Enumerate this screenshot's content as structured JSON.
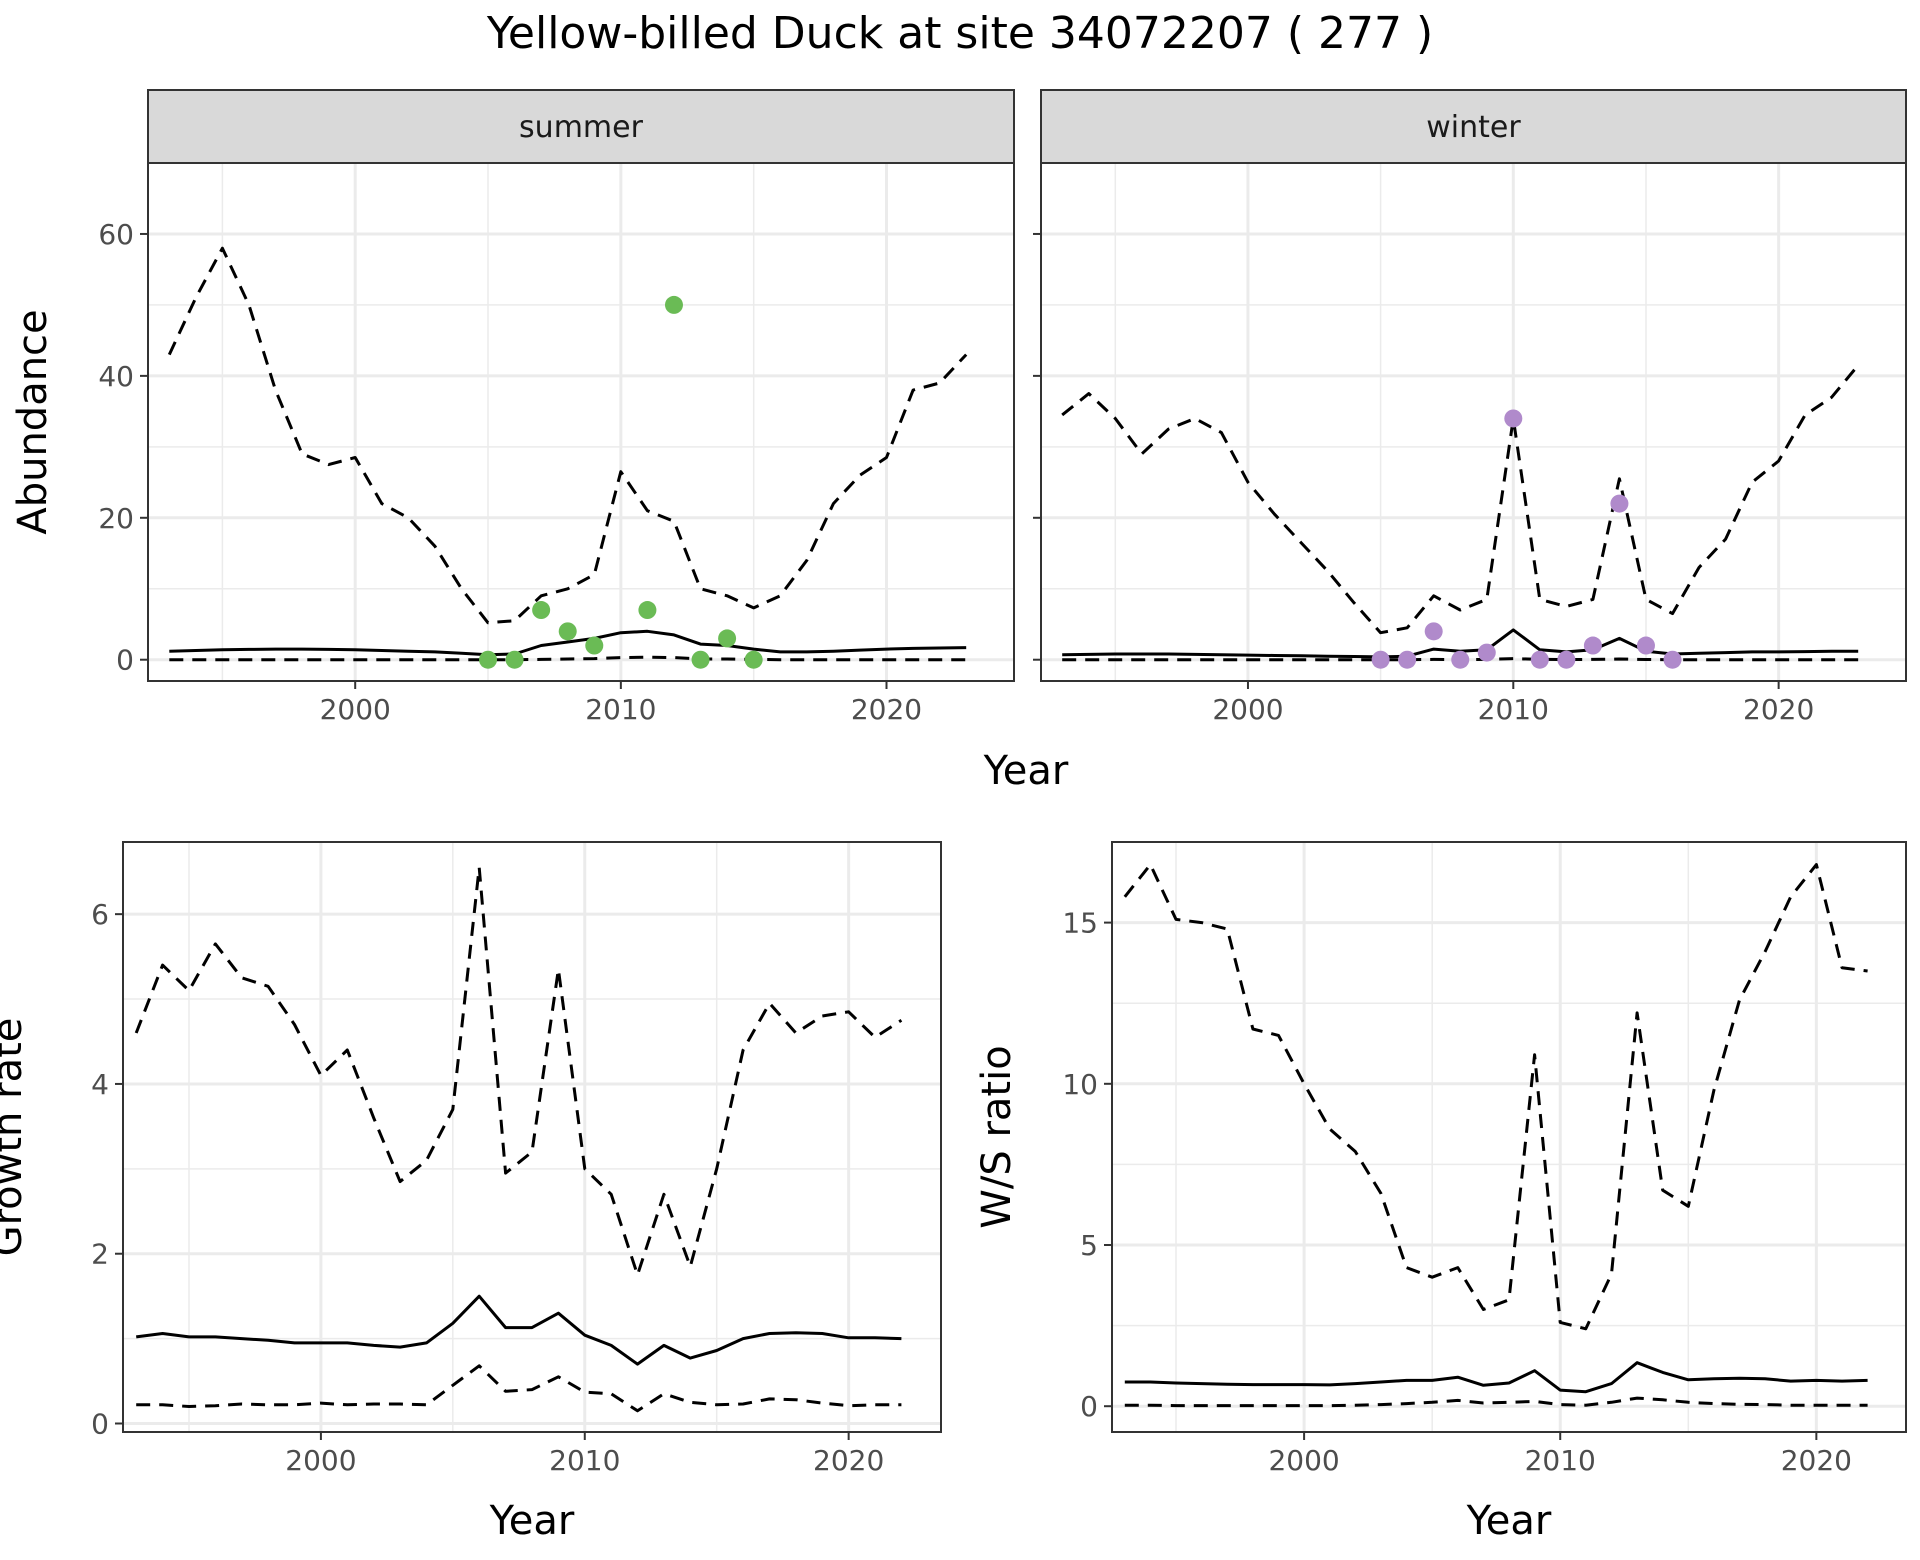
{
  "title": "Yellow-billed Duck at site 34072207 ( 277 )",
  "colors": {
    "summer_points": "#6abb55",
    "winter_points": "#b08acb",
    "lines": "#000000",
    "strip_fill": "#d9d9d9"
  },
  "chart_data": [
    {
      "type": "line",
      "facet": "summer",
      "xlabel": "Year",
      "ylabel": "Abundance",
      "xlim": [
        1992.2,
        2024.8
      ],
      "ylim": [
        -3,
        70
      ],
      "xticks": [
        2000,
        2010,
        2020
      ],
      "yticks": [
        0,
        20,
        40,
        60
      ],
      "grid": true,
      "series": [
        {
          "style": "dashed",
          "x": [
            1993,
            1994,
            1995,
            1996,
            1997,
            1998,
            1999,
            2000,
            2001,
            2002,
            2003,
            2004,
            2005,
            2006,
            2007,
            2008,
            2009,
            2010,
            2011,
            2012,
            2013,
            2014,
            2015,
            2016,
            2017,
            2018,
            2019,
            2020,
            2021,
            2022,
            2023
          ],
          "y": [
            43,
            51,
            58,
            50,
            38,
            29,
            27.5,
            28.5,
            22,
            20,
            16,
            10,
            5.2,
            5.5,
            9,
            10,
            12,
            26.5,
            21,
            19.5,
            10,
            9,
            7.3,
            9,
            14,
            22,
            26,
            28.5,
            38,
            39,
            43
          ]
        },
        {
          "style": "solid",
          "x": [
            1993,
            1994,
            1995,
            1996,
            1997,
            1998,
            1999,
            2000,
            2001,
            2002,
            2003,
            2004,
            2005,
            2006,
            2007,
            2008,
            2009,
            2010,
            2011,
            2012,
            2013,
            2014,
            2015,
            2016,
            2017,
            2018,
            2019,
            2020,
            2021,
            2022,
            2023
          ],
          "y": [
            1.2,
            1.3,
            1.4,
            1.45,
            1.5,
            1.5,
            1.45,
            1.4,
            1.3,
            1.2,
            1.1,
            0.9,
            0.7,
            0.8,
            2,
            2.5,
            3,
            3.8,
            4.0,
            3.5,
            2.2,
            2.0,
            1.5,
            1.1,
            1.1,
            1.2,
            1.35,
            1.5,
            1.6,
            1.65,
            1.7
          ]
        },
        {
          "style": "dashed",
          "x": [
            1993,
            1994,
            1995,
            1996,
            1997,
            1998,
            1999,
            2000,
            2001,
            2002,
            2003,
            2004,
            2005,
            2006,
            2007,
            2008,
            2009,
            2010,
            2011,
            2012,
            2013,
            2014,
            2015,
            2016,
            2017,
            2018,
            2019,
            2020,
            2021,
            2022,
            2023
          ],
          "y": [
            0,
            0,
            0,
            0,
            0,
            0,
            0,
            0,
            0,
            0,
            0,
            0,
            0,
            0,
            0.05,
            0.1,
            0.15,
            0.3,
            0.35,
            0.3,
            0.1,
            0.1,
            0.05,
            0,
            0,
            0,
            0,
            0,
            0,
            0,
            0
          ]
        }
      ],
      "points": {
        "x": [
          2005,
          2006,
          2007,
          2008,
          2009,
          2011,
          2012,
          2013,
          2014,
          2015
        ],
        "y": [
          0,
          0,
          7,
          4,
          2,
          7,
          50,
          0,
          3,
          0
        ]
      }
    },
    {
      "type": "line",
      "facet": "winter",
      "xlabel": "Year",
      "ylabel": "Abundance",
      "xlim": [
        1992.2,
        2024.8
      ],
      "ylim": [
        -3,
        70
      ],
      "xticks": [
        2000,
        2010,
        2020
      ],
      "yticks": [
        0,
        20,
        40,
        60
      ],
      "grid": true,
      "series": [
        {
          "style": "dashed",
          "x": [
            1993,
            1994,
            1995,
            1996,
            1997,
            1998,
            1999,
            2000,
            2001,
            2002,
            2003,
            2004,
            2005,
            2006,
            2007,
            2008,
            2009,
            2010,
            2011,
            2012,
            2013,
            2014,
            2015,
            2016,
            2017,
            2018,
            2019,
            2020,
            2021,
            2022,
            2023
          ],
          "y": [
            34.5,
            37.5,
            34,
            29,
            32.5,
            34,
            32,
            25,
            20.5,
            16.5,
            12.5,
            8,
            3.8,
            4.5,
            9,
            7,
            8.5,
            34,
            8.5,
            7.5,
            8.5,
            25.5,
            8.5,
            6.5,
            13,
            17,
            25,
            28,
            34.5,
            37,
            41.5
          ]
        },
        {
          "style": "solid",
          "x": [
            1993,
            1994,
            1995,
            1996,
            1997,
            1998,
            1999,
            2000,
            2001,
            2002,
            2003,
            2004,
            2005,
            2006,
            2007,
            2008,
            2009,
            2010,
            2011,
            2012,
            2013,
            2014,
            2015,
            2016,
            2017,
            2018,
            2019,
            2020,
            2021,
            2022,
            2023
          ],
          "y": [
            0.7,
            0.75,
            0.8,
            0.8,
            0.8,
            0.75,
            0.7,
            0.65,
            0.6,
            0.55,
            0.5,
            0.45,
            0.4,
            0.5,
            1.5,
            1.2,
            1.4,
            4.2,
            1.4,
            1.1,
            1.4,
            3.0,
            1.2,
            0.8,
            0.9,
            1.0,
            1.1,
            1.1,
            1.15,
            1.2,
            1.2
          ]
        },
        {
          "style": "dashed",
          "x": [
            1993,
            1994,
            1995,
            1996,
            1997,
            1998,
            1999,
            2000,
            2001,
            2002,
            2003,
            2004,
            2005,
            2006,
            2007,
            2008,
            2009,
            2010,
            2011,
            2012,
            2013,
            2014,
            2015,
            2016,
            2017,
            2018,
            2019,
            2020,
            2021,
            2022,
            2023
          ],
          "y": [
            0,
            0,
            0,
            0,
            0,
            0,
            0,
            0,
            0,
            0,
            0,
            0,
            0,
            0,
            0.05,
            0.02,
            0.05,
            0.15,
            0.05,
            0.03,
            0.05,
            0.1,
            0.03,
            0,
            0,
            0,
            0,
            0,
            0,
            0,
            0
          ]
        }
      ],
      "points": {
        "x": [
          2005,
          2006,
          2007,
          2008,
          2009,
          2010,
          2011,
          2012,
          2013,
          2014,
          2015,
          2016
        ],
        "y": [
          0,
          0,
          4,
          0,
          1,
          34,
          0,
          0,
          2,
          22,
          2,
          0
        ]
      }
    },
    {
      "type": "line",
      "xlabel": "Year",
      "ylabel": "Growth rate",
      "xlim": [
        1992.5,
        2023.5
      ],
      "ylim": [
        -0.1,
        6.85
      ],
      "xticks": [
        2000,
        2010,
        2020
      ],
      "yticks": [
        0,
        2,
        4,
        6
      ],
      "grid": true,
      "series": [
        {
          "style": "dashed",
          "x": [
            1993,
            1994,
            1995,
            1996,
            1997,
            1998,
            1999,
            2000,
            2001,
            2002,
            2003,
            2004,
            2005,
            2006,
            2007,
            2008,
            2009,
            2010,
            2011,
            2012,
            2013,
            2014,
            2015,
            2016,
            2017,
            2018,
            2019,
            2020,
            2021,
            2022
          ],
          "y": [
            4.6,
            5.4,
            5.1,
            5.65,
            5.25,
            5.15,
            4.7,
            4.1,
            4.4,
            3.6,
            2.85,
            3.1,
            3.7,
            6.55,
            2.95,
            3.2,
            5.35,
            3.0,
            2.7,
            1.75,
            2.7,
            1.85,
            3.0,
            4.4,
            4.95,
            4.6,
            4.8,
            4.85,
            4.55,
            4.75
          ]
        },
        {
          "style": "solid",
          "x": [
            1993,
            1994,
            1995,
            1996,
            1997,
            1998,
            1999,
            2000,
            2001,
            2002,
            2003,
            2004,
            2005,
            2006,
            2007,
            2008,
            2009,
            2010,
            2011,
            2012,
            2013,
            2014,
            2015,
            2016,
            2017,
            2018,
            2019,
            2020,
            2021,
            2022
          ],
          "y": [
            1.02,
            1.06,
            1.02,
            1.02,
            1.0,
            0.98,
            0.95,
            0.95,
            0.95,
            0.92,
            0.9,
            0.95,
            1.18,
            1.5,
            1.13,
            1.13,
            1.3,
            1.04,
            0.92,
            0.7,
            0.92,
            0.77,
            0.86,
            1.0,
            1.06,
            1.07,
            1.06,
            1.01,
            1.01,
            1.0
          ]
        },
        {
          "style": "dashed",
          "x": [
            1993,
            1994,
            1995,
            1996,
            1997,
            1998,
            1999,
            2000,
            2001,
            2002,
            2003,
            2004,
            2005,
            2006,
            2007,
            2008,
            2009,
            2010,
            2011,
            2012,
            2013,
            2014,
            2015,
            2016,
            2017,
            2018,
            2019,
            2020,
            2021,
            2022
          ],
          "y": [
            0.22,
            0.22,
            0.2,
            0.21,
            0.23,
            0.22,
            0.22,
            0.24,
            0.22,
            0.23,
            0.23,
            0.22,
            0.45,
            0.68,
            0.38,
            0.4,
            0.55,
            0.37,
            0.35,
            0.15,
            0.35,
            0.25,
            0.22,
            0.23,
            0.29,
            0.28,
            0.24,
            0.21,
            0.22,
            0.22
          ]
        }
      ]
    },
    {
      "type": "line",
      "xlabel": "Year",
      "ylabel": "W/S ratio",
      "xlim": [
        1992.5,
        2023.5
      ],
      "ylim": [
        -0.8,
        17.5
      ],
      "xticks": [
        2000,
        2010,
        2020
      ],
      "yticks": [
        0,
        5,
        10,
        15
      ],
      "grid": true,
      "series": [
        {
          "style": "dashed",
          "x": [
            1993,
            1994,
            1995,
            1996,
            1997,
            1998,
            1999,
            2000,
            2001,
            2002,
            2003,
            2004,
            2005,
            2006,
            2007,
            2008,
            2009,
            2010,
            2011,
            2012,
            2013,
            2014,
            2015,
            2016,
            2017,
            2018,
            2019,
            2020,
            2021,
            2022
          ],
          "y": [
            15.8,
            16.8,
            15.1,
            15.0,
            14.8,
            11.7,
            11.5,
            10.0,
            8.6,
            7.9,
            6.6,
            4.3,
            4.0,
            4.3,
            3.0,
            3.3,
            10.9,
            2.6,
            2.4,
            4.1,
            12.2,
            6.7,
            6.2,
            9.8,
            12.6,
            14.1,
            15.8,
            16.8,
            13.6,
            13.5
          ]
        },
        {
          "style": "solid",
          "x": [
            1993,
            1994,
            1995,
            1996,
            1997,
            1998,
            1999,
            2000,
            2001,
            2002,
            2003,
            2004,
            2005,
            2006,
            2007,
            2008,
            2009,
            2010,
            2011,
            2012,
            2013,
            2014,
            2015,
            2016,
            2017,
            2018,
            2019,
            2020,
            2021,
            2022
          ],
          "y": [
            0.75,
            0.75,
            0.72,
            0.7,
            0.68,
            0.67,
            0.67,
            0.67,
            0.66,
            0.7,
            0.75,
            0.8,
            0.8,
            0.9,
            0.65,
            0.72,
            1.1,
            0.5,
            0.45,
            0.7,
            1.35,
            1.05,
            0.82,
            0.85,
            0.87,
            0.85,
            0.78,
            0.8,
            0.78,
            0.8
          ]
        },
        {
          "style": "dashed",
          "x": [
            1993,
            1994,
            1995,
            1996,
            1997,
            1998,
            1999,
            2000,
            2001,
            2002,
            2003,
            2004,
            2005,
            2006,
            2007,
            2008,
            2009,
            2010,
            2011,
            2012,
            2013,
            2014,
            2015,
            2016,
            2017,
            2018,
            2019,
            2020,
            2021,
            2022
          ],
          "y": [
            0.03,
            0.03,
            0.02,
            0.02,
            0.02,
            0.02,
            0.02,
            0.02,
            0.02,
            0.03,
            0.05,
            0.08,
            0.12,
            0.18,
            0.1,
            0.12,
            0.15,
            0.05,
            0.03,
            0.12,
            0.25,
            0.2,
            0.12,
            0.08,
            0.06,
            0.05,
            0.03,
            0.03,
            0.03,
            0.03
          ]
        }
      ]
    }
  ]
}
